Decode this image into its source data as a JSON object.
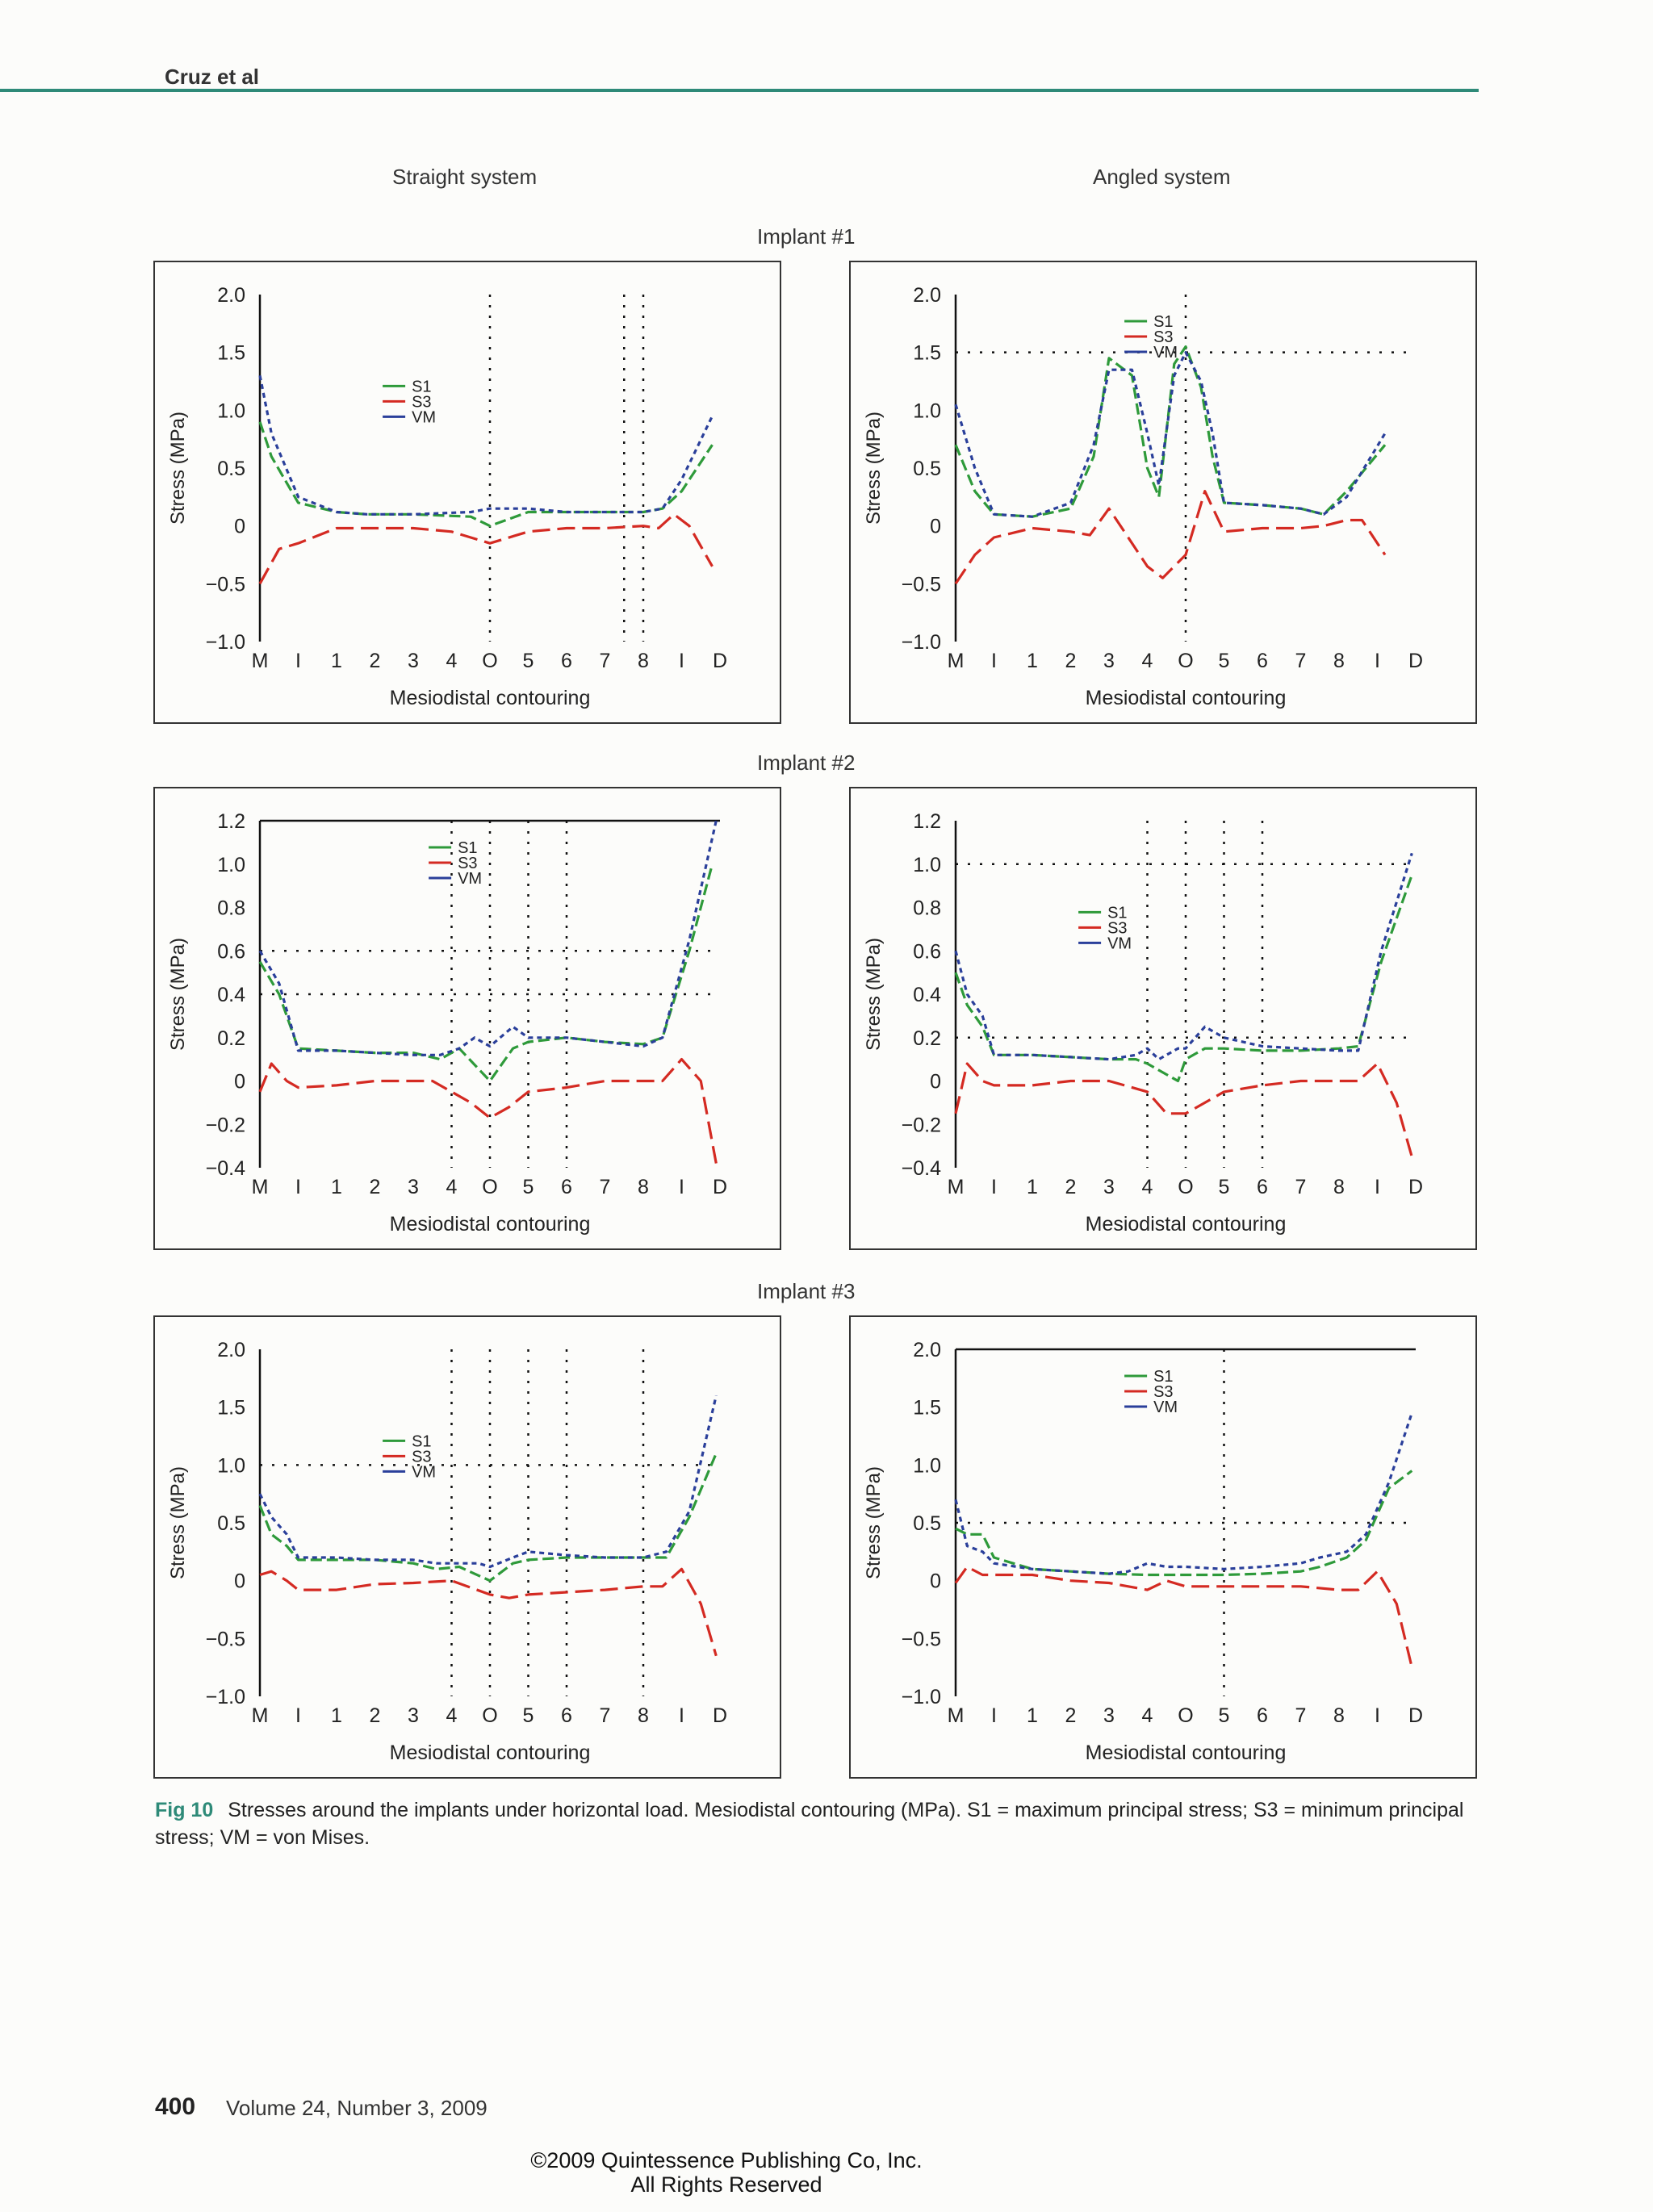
{
  "header": {
    "author": "Cruz et al"
  },
  "columns": {
    "left": "Straight system",
    "right": "Angled system"
  },
  "implants": [
    "Implant #1",
    "Implant #2",
    "Implant #3"
  ],
  "caption": {
    "label": "Fig 10",
    "text": "Stresses around the implants under horizontal load. Mesiodistal contouring (MPa). S1 = maximum principal stress; S3 = minimum principal stress; VM = von Mises."
  },
  "footer": {
    "page_number": "400",
    "journal": "Volume 24, Number 3, 2009"
  },
  "copyright": {
    "line1": "©2009 Quintessence Publishing Co, Inc.",
    "line2": "All Rights Reserved"
  },
  "series_colors": {
    "S1": "#2e9a3a",
    "S3": "#d42a22",
    "VM": "#2a3f9a"
  },
  "chart_data": [
    {
      "id": "implant1-straight",
      "type": "line",
      "xlabel": "Mesiodistal contouring",
      "ylabel": "Stress (MPa)",
      "ylim": [
        -1.0,
        2.0
      ],
      "yticks": [
        "2.0",
        "1.5",
        "1.0",
        "0.5",
        "0",
        "−0.5",
        "−1.0"
      ],
      "xticks": [
        "M",
        "I",
        "1",
        "2",
        "3",
        "4",
        "O",
        "5",
        "6",
        "7",
        "8",
        "I",
        "D"
      ],
      "legend": [
        "S1",
        "S3",
        "VM"
      ],
      "legend_position": "center",
      "series": [
        {
          "name": "S1",
          "x": [
            0,
            0.3,
            1,
            2,
            2.8,
            4,
            5.5,
            6,
            7,
            8,
            9,
            10,
            10.5,
            11,
            11.8
          ],
          "y": [
            0.9,
            0.6,
            0.2,
            0.12,
            0.1,
            0.1,
            0.08,
            0.0,
            0.12,
            0.12,
            0.12,
            0.12,
            0.15,
            0.3,
            0.7
          ]
        },
        {
          "name": "S3",
          "x": [
            0,
            0.5,
            1,
            2,
            3,
            4,
            5,
            6,
            7,
            8,
            9,
            10,
            10.4,
            10.8,
            11.2,
            11.8
          ],
          "y": [
            -0.5,
            -0.2,
            -0.15,
            -0.02,
            -0.02,
            -0.02,
            -0.05,
            -0.15,
            -0.05,
            -0.02,
            -0.02,
            0.0,
            -0.02,
            0.1,
            0.0,
            -0.35
          ]
        },
        {
          "name": "VM",
          "x": [
            0,
            0.3,
            1,
            2,
            2.8,
            4,
            5.5,
            6,
            7,
            8,
            9,
            10,
            10.5,
            11,
            11.8
          ],
          "y": [
            1.3,
            0.8,
            0.25,
            0.12,
            0.1,
            0.1,
            0.12,
            0.15,
            0.15,
            0.12,
            0.12,
            0.12,
            0.15,
            0.4,
            0.95
          ]
        }
      ]
    },
    {
      "id": "implant1-angled",
      "type": "line",
      "xlabel": "Mesiodistal contouring",
      "ylabel": "Stress (MPa)",
      "ylim": [
        -1.0,
        2.0
      ],
      "yticks": [
        "2.0",
        "1.5",
        "1.0",
        "0.5",
        "0",
        "−0.5",
        "−1.0"
      ],
      "xticks": [
        "M",
        "I",
        "1",
        "2",
        "3",
        "4",
        "O",
        "5",
        "6",
        "7",
        "8",
        "I",
        "D"
      ],
      "legend": [
        "S1",
        "S3",
        "VM"
      ],
      "legend_position": "top-center",
      "series": [
        {
          "name": "S1",
          "x": [
            0,
            0.5,
            1,
            2,
            3,
            3.6,
            4,
            4.6,
            5.0,
            5.3,
            5.7,
            6.0,
            6.4,
            6.7,
            7,
            8,
            9,
            9.6,
            10.2,
            11.2
          ],
          "y": [
            0.7,
            0.3,
            0.1,
            0.08,
            0.15,
            0.6,
            1.45,
            1.3,
            0.5,
            0.25,
            1.4,
            1.55,
            1.2,
            0.6,
            0.2,
            0.18,
            0.15,
            0.1,
            0.3,
            0.7
          ]
        },
        {
          "name": "S3",
          "x": [
            0,
            0.5,
            1,
            2,
            3,
            3.5,
            4,
            4.5,
            5.0,
            5.4,
            6,
            6.5,
            7,
            8,
            9,
            9.6,
            10.2,
            10.6,
            11.2
          ],
          "y": [
            -0.5,
            -0.25,
            -0.1,
            -0.02,
            -0.05,
            -0.08,
            0.15,
            -0.1,
            -0.35,
            -0.45,
            -0.25,
            0.3,
            -0.05,
            -0.02,
            -0.02,
            0.0,
            0.05,
            0.05,
            -0.25
          ]
        },
        {
          "name": "VM",
          "x": [
            0,
            0.5,
            1,
            2,
            3,
            3.6,
            4,
            4.6,
            5.0,
            5.3,
            5.7,
            6.0,
            6.4,
            6.7,
            7,
            8,
            9,
            9.6,
            10.2,
            11.2
          ],
          "y": [
            1.05,
            0.5,
            0.1,
            0.08,
            0.2,
            0.7,
            1.35,
            1.35,
            0.8,
            0.35,
            1.3,
            1.5,
            1.25,
            0.8,
            0.2,
            0.18,
            0.15,
            0.1,
            0.25,
            0.8
          ]
        }
      ]
    },
    {
      "id": "implant2-straight",
      "type": "line",
      "xlabel": "Mesiodistal contouring",
      "ylabel": "Stress (MPa)",
      "ylim": [
        -0.4,
        1.2
      ],
      "yticks": [
        "1.2",
        "1.0",
        "0.8",
        "0.6",
        "0.4",
        "0.2",
        "0",
        "−0.2",
        "−0.4"
      ],
      "xticks": [
        "M",
        "I",
        "1",
        "2",
        "3",
        "4",
        "O",
        "5",
        "6",
        "7",
        "8",
        "I",
        "D"
      ],
      "legend": [
        "S1",
        "S3",
        "VM"
      ],
      "legend_position": "top-center",
      "series": [
        {
          "name": "S1",
          "x": [
            0,
            0.5,
            1,
            2,
            3,
            4,
            4.7,
            5.2,
            6,
            6.6,
            7,
            8,
            9,
            10,
            10.5,
            11.2,
            11.8
          ],
          "y": [
            0.55,
            0.4,
            0.15,
            0.14,
            0.13,
            0.13,
            0.1,
            0.15,
            0.0,
            0.15,
            0.18,
            0.2,
            0.18,
            0.17,
            0.2,
            0.6,
            1.0
          ]
        },
        {
          "name": "S3",
          "x": [
            0,
            0.3,
            0.7,
            1,
            2,
            3,
            4,
            4.5,
            5,
            5.5,
            6,
            6.5,
            7,
            8,
            9,
            10,
            10.5,
            11.0,
            11.5,
            11.9
          ],
          "y": [
            -0.05,
            0.08,
            0.0,
            -0.03,
            -0.02,
            0.0,
            0.0,
            0.0,
            -0.05,
            -0.1,
            -0.17,
            -0.12,
            -0.05,
            -0.03,
            0.0,
            0.0,
            0.0,
            0.1,
            0.0,
            -0.38
          ]
        },
        {
          "name": "VM",
          "x": [
            0,
            0.5,
            1,
            2,
            3,
            4,
            4.7,
            5.2,
            5.6,
            6,
            6.6,
            7,
            8,
            9,
            10,
            10.5,
            11.2,
            11.9
          ],
          "y": [
            0.6,
            0.45,
            0.14,
            0.14,
            0.13,
            0.12,
            0.12,
            0.15,
            0.2,
            0.16,
            0.25,
            0.2,
            0.2,
            0.18,
            0.16,
            0.2,
            0.65,
            1.2
          ]
        }
      ]
    },
    {
      "id": "implant2-angled",
      "type": "line",
      "xlabel": "Mesiodistal contouring",
      "ylabel": "Stress (MPa)",
      "ylim": [
        -0.4,
        1.2
      ],
      "yticks": [
        "1.2",
        "1.0",
        "0.8",
        "0.6",
        "0.4",
        "0.2",
        "0",
        "−0.2",
        "−0.4"
      ],
      "xticks": [
        "M",
        "I",
        "1",
        "2",
        "3",
        "4",
        "O",
        "5",
        "6",
        "7",
        "8",
        "I",
        "D"
      ],
      "legend": [
        "S1",
        "S3",
        "VM"
      ],
      "legend_position": "center",
      "series": [
        {
          "name": "S1",
          "x": [
            0,
            0.3,
            0.7,
            1,
            2,
            3,
            4,
            4.7,
            5,
            5.3,
            5.8,
            6,
            6.5,
            7,
            8,
            9,
            10,
            10.5,
            11.1,
            11.9
          ],
          "y": [
            0.5,
            0.35,
            0.25,
            0.12,
            0.12,
            0.11,
            0.1,
            0.1,
            0.08,
            0.05,
            0.0,
            0.1,
            0.15,
            0.15,
            0.14,
            0.14,
            0.15,
            0.16,
            0.55,
            0.95
          ]
        },
        {
          "name": "S3",
          "x": [
            0,
            0.3,
            0.7,
            1,
            2,
            3,
            4,
            5,
            5.5,
            6,
            6.5,
            7,
            8,
            9,
            10,
            10.5,
            11,
            11.5,
            11.9
          ],
          "y": [
            -0.15,
            0.08,
            0.0,
            -0.02,
            -0.02,
            0.0,
            0.0,
            -0.05,
            -0.15,
            -0.15,
            -0.1,
            -0.05,
            -0.02,
            0.0,
            0.0,
            0.0,
            0.08,
            -0.1,
            -0.35
          ]
        },
        {
          "name": "VM",
          "x": [
            0,
            0.3,
            0.7,
            1,
            2,
            3,
            4,
            4.7,
            5,
            5.3,
            5.8,
            6,
            6.5,
            7,
            8,
            9,
            10,
            10.5,
            11.1,
            11.9
          ],
          "y": [
            0.6,
            0.4,
            0.3,
            0.12,
            0.12,
            0.11,
            0.1,
            0.12,
            0.15,
            0.1,
            0.15,
            0.15,
            0.25,
            0.2,
            0.16,
            0.15,
            0.14,
            0.14,
            0.6,
            1.05
          ]
        }
      ]
    },
    {
      "id": "implant3-straight",
      "type": "line",
      "xlabel": "Mesiodistal contouring",
      "ylabel": "Stress (MPa)",
      "ylim": [
        -1.0,
        2.0
      ],
      "yticks": [
        "2.0",
        "1.5",
        "1.0",
        "0.5",
        "0",
        "−0.5",
        "−1.0"
      ],
      "xticks": [
        "M",
        "I",
        "1",
        "2",
        "3",
        "4",
        "O",
        "5",
        "6",
        "7",
        "8",
        "I",
        "D"
      ],
      "legend": [
        "S1",
        "S3",
        "VM"
      ],
      "legend_position": "center",
      "series": [
        {
          "name": "S1",
          "x": [
            0,
            0.3,
            0.7,
            1,
            2,
            3,
            4,
            4.6,
            5.2,
            6,
            6.6,
            7,
            8,
            9,
            10,
            10.6,
            11.2,
            11.9
          ],
          "y": [
            0.65,
            0.4,
            0.3,
            0.18,
            0.18,
            0.18,
            0.15,
            0.1,
            0.12,
            0.0,
            0.15,
            0.18,
            0.2,
            0.2,
            0.2,
            0.2,
            0.55,
            1.1
          ]
        },
        {
          "name": "S3",
          "x": [
            0,
            0.3,
            0.7,
            1,
            2,
            3,
            4,
            5,
            6,
            6.5,
            7,
            8,
            9,
            10,
            10.5,
            11,
            11.5,
            11.9
          ],
          "y": [
            0.05,
            0.08,
            0.0,
            -0.08,
            -0.08,
            -0.03,
            -0.02,
            0.0,
            -0.12,
            -0.15,
            -0.12,
            -0.1,
            -0.08,
            -0.05,
            -0.05,
            0.1,
            -0.2,
            -0.65
          ]
        },
        {
          "name": "VM",
          "x": [
            0,
            0.3,
            0.7,
            1,
            2,
            3,
            4,
            4.6,
            5.2,
            5.7,
            6,
            6.6,
            7,
            8,
            9,
            10,
            10.6,
            11.2,
            11.9
          ],
          "y": [
            0.75,
            0.55,
            0.4,
            0.2,
            0.2,
            0.18,
            0.18,
            0.15,
            0.15,
            0.15,
            0.12,
            0.2,
            0.25,
            0.22,
            0.2,
            0.2,
            0.25,
            0.6,
            1.6
          ]
        }
      ]
    },
    {
      "id": "implant3-angled",
      "type": "line",
      "xlabel": "Mesiodistal contouring",
      "ylabel": "Stress (MPa)",
      "ylim": [
        -1.0,
        2.0
      ],
      "yticks": [
        "2.0",
        "1.5",
        "1.0",
        "0.5",
        "0",
        "−0.5",
        "−1.0"
      ],
      "xticks": [
        "M",
        "I",
        "1",
        "2",
        "3",
        "4",
        "O",
        "5",
        "6",
        "7",
        "8",
        "I",
        "D"
      ],
      "legend": [
        "S1",
        "S3",
        "VM"
      ],
      "legend_position": "top-center",
      "series": [
        {
          "name": "S1",
          "x": [
            0,
            0.3,
            0.7,
            1,
            2,
            3,
            4,
            5,
            6,
            7,
            8,
            9,
            9.5,
            10.2,
            10.7,
            11.3,
            11.9
          ],
          "y": [
            0.45,
            0.4,
            0.4,
            0.2,
            0.1,
            0.08,
            0.06,
            0.05,
            0.05,
            0.05,
            0.06,
            0.08,
            0.12,
            0.2,
            0.35,
            0.8,
            0.95
          ]
        },
        {
          "name": "S3",
          "x": [
            0,
            0.3,
            0.7,
            1,
            2,
            3,
            4,
            4.5,
            5,
            5.5,
            6,
            7,
            8,
            9,
            10,
            10.5,
            11,
            11.5,
            11.9
          ],
          "y": [
            -0.02,
            0.12,
            0.05,
            0.05,
            0.05,
            0.0,
            -0.02,
            -0.05,
            -0.08,
            0.0,
            -0.05,
            -0.05,
            -0.05,
            -0.05,
            -0.08,
            -0.08,
            0.08,
            -0.2,
            -0.75
          ]
        },
        {
          "name": "VM",
          "x": [
            0,
            0.3,
            0.7,
            1,
            2,
            3,
            4,
            4.5,
            5,
            5.5,
            6,
            7,
            8,
            9,
            9.5,
            10.2,
            10.7,
            11.3,
            11.9
          ],
          "y": [
            0.7,
            0.3,
            0.25,
            0.15,
            0.1,
            0.08,
            0.06,
            0.08,
            0.15,
            0.12,
            0.12,
            0.1,
            0.12,
            0.15,
            0.2,
            0.25,
            0.4,
            0.85,
            1.45
          ]
        }
      ]
    }
  ]
}
